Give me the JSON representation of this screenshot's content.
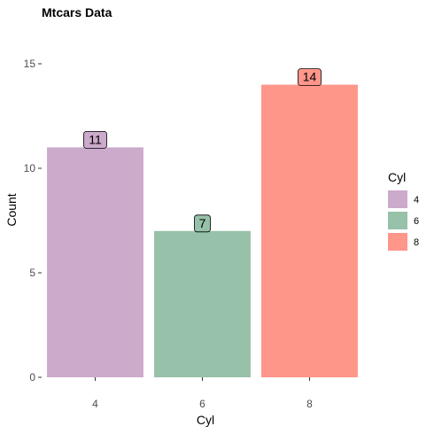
{
  "chart_data": {
    "type": "bar",
    "title": "Mtcars Data",
    "xlabel": "Cyl",
    "ylabel": "Count",
    "categories": [
      "4",
      "6",
      "8"
    ],
    "values": [
      11,
      7,
      14
    ],
    "data_labels": [
      "11",
      "7",
      "14"
    ],
    "colors": [
      "#cbaacb",
      "#97c1a9",
      "#ff968a"
    ],
    "ylim": [
      0,
      15
    ],
    "yticks": [
      0,
      5,
      10,
      15
    ],
    "ytick_labels": [
      "0",
      "5",
      "10",
      "15"
    ],
    "grid": false,
    "legend": {
      "title": "Cyl",
      "position": "right",
      "entries": [
        "4",
        "6",
        "8"
      ]
    }
  }
}
